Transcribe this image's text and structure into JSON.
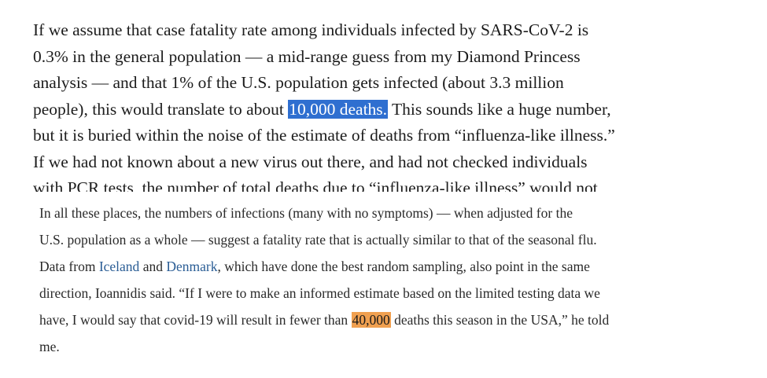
{
  "top_excerpt": {
    "lines": [
      "If we assume that case fatality rate among individuals infected by SARS-CoV-2 is",
      "0.3% in the general population — a mid-range guess from my Diamond Princess",
      "analysis — and that 1% of the U.S. population gets infected (about 3.3 million"
    ],
    "line4_before": "people), this would translate to about ",
    "line4_highlight": "10,000 deaths.",
    "line4_after": " This sounds like a huge number,",
    "lines_after": [
      "but it is buried within the noise of the estimate of deaths from “influenza-like illness.”",
      "If we had not known about a new virus out there, and had not checked individuals",
      "with PCR tests, the number of total deaths due to “influenza-like illness” would not"
    ],
    "highlight_color": "#2f6fd0"
  },
  "bottom_excerpt": {
    "line1": "In all these places, the numbers of infections (many with no symptoms) — when adjusted for the",
    "line2": "U.S. population as a whole — suggest a fatality rate that is actually similar to that of the seasonal flu.",
    "line3_prefix": "Data from ",
    "link_iceland": "Iceland",
    "line3_and": " and ",
    "link_denmark": "Denmark",
    "line3_suffix": ", which have done the best random sampling, also point in the same",
    "line4": "direction, Ioannidis said. “If I were to make an informed estimate based on the limited testing data we",
    "line5_before": "have, I would say that covid-19 will result in fewer than ",
    "line5_highlight": "40,000",
    "line5_after": " deaths this season in the USA,” he told",
    "line6": "me.",
    "highlight_color": "#f0a050",
    "link_color": "#2a5d95"
  }
}
